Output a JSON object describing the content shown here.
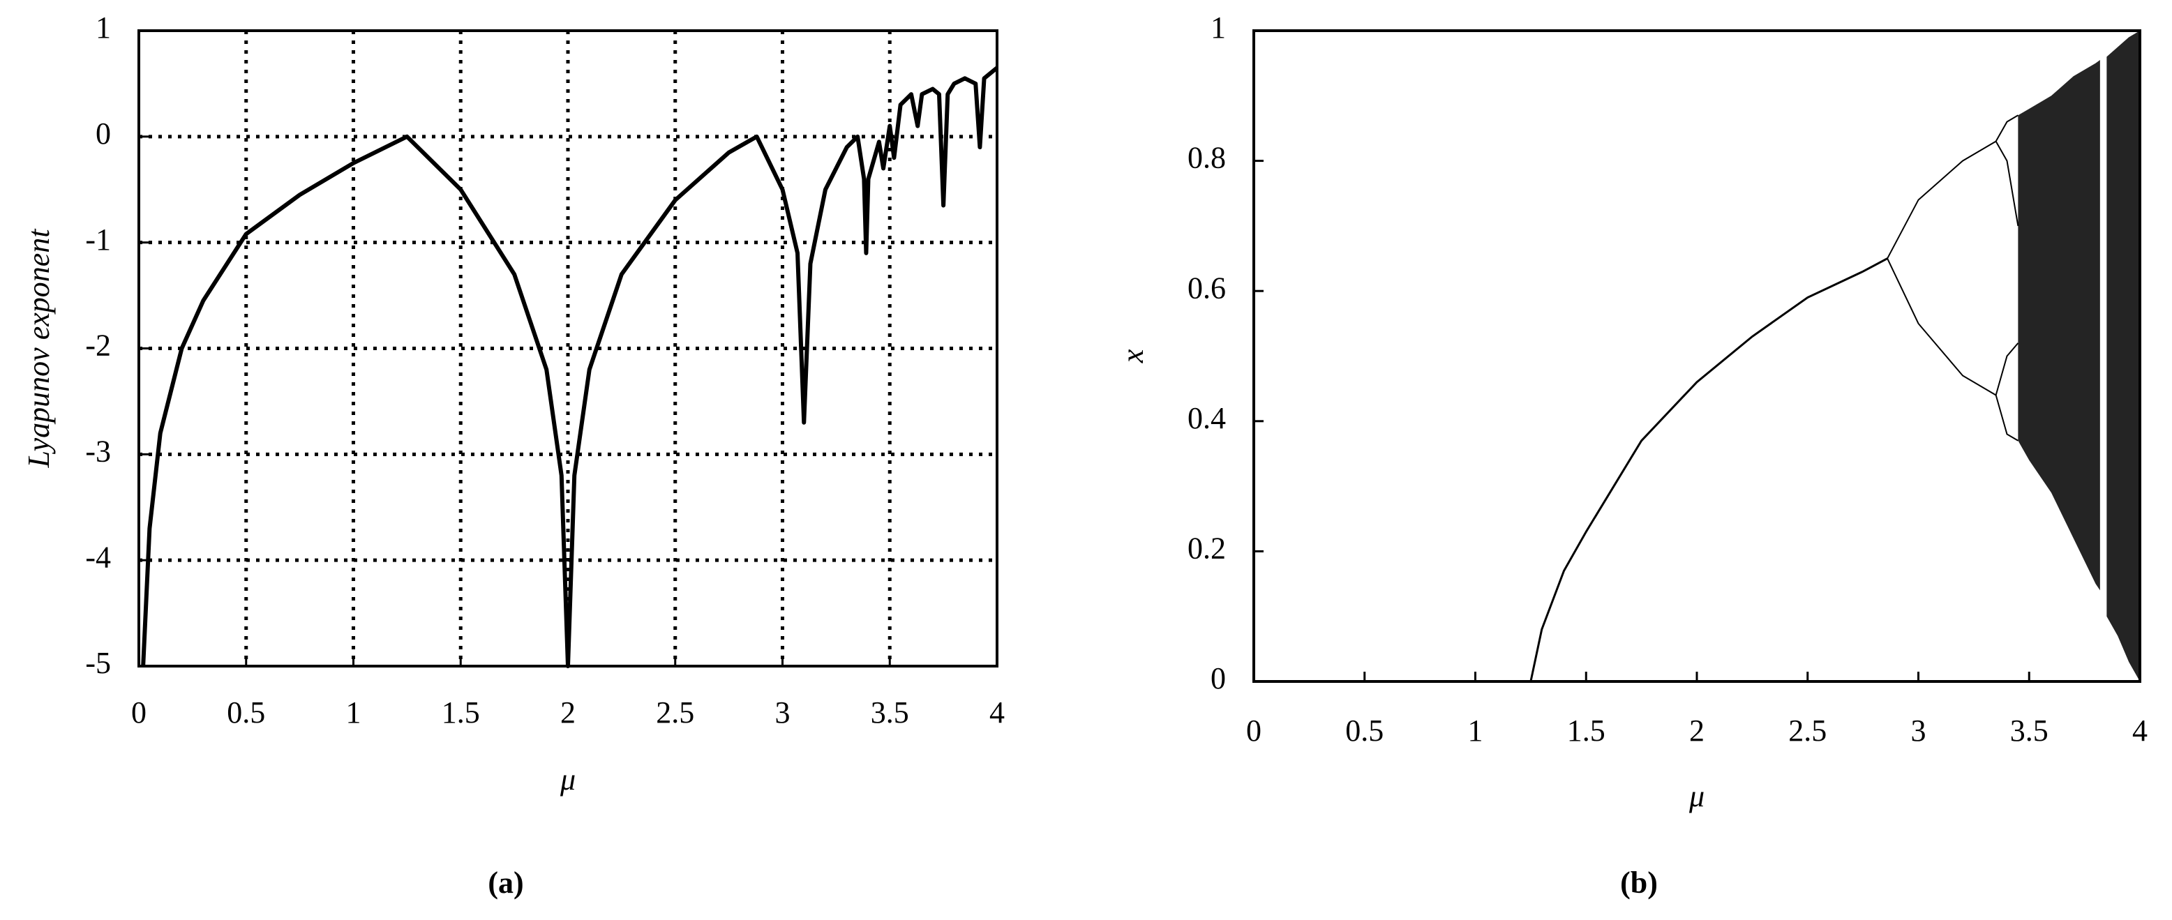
{
  "chart_data": [
    {
      "type": "line",
      "xlabel": "μ",
      "ylabel": "Lyapunov exponent",
      "caption": "(a)",
      "color": "#000000",
      "grid": true,
      "xlim": [
        0,
        4
      ],
      "ylim": [
        -5,
        1
      ],
      "xticks": [
        0,
        0.5,
        1,
        1.5,
        2,
        2.5,
        3,
        3.5,
        4
      ],
      "yticks": [
        -5,
        -4,
        -3,
        -2,
        -1,
        0,
        1
      ],
      "x": [
        0.02,
        0.05,
        0.1,
        0.2,
        0.3,
        0.5,
        0.75,
        1.0,
        1.25,
        1.5,
        1.75,
        1.9,
        1.97,
        2.0,
        2.03,
        2.1,
        2.25,
        2.5,
        2.75,
        2.88,
        3.0,
        3.07,
        3.1,
        3.13,
        3.2,
        3.3,
        3.35,
        3.38,
        3.39,
        3.4,
        3.45,
        3.47,
        3.5,
        3.52,
        3.55,
        3.6,
        3.63,
        3.65,
        3.7,
        3.73,
        3.75,
        3.77,
        3.8,
        3.85,
        3.9,
        3.92,
        3.94,
        4.0
      ],
      "values": [
        -5,
        -3.7,
        -2.8,
        -2.0,
        -1.55,
        -0.92,
        -0.55,
        -0.25,
        0,
        -0.5,
        -1.3,
        -2.2,
        -3.2,
        -5,
        -3.2,
        -2.2,
        -1.3,
        -0.6,
        -0.15,
        0,
        -0.5,
        -1.1,
        -2.7,
        -1.2,
        -0.5,
        -0.1,
        0,
        -0.4,
        -1.1,
        -0.4,
        -0.05,
        -0.3,
        0.1,
        -0.2,
        0.3,
        0.4,
        0.1,
        0.4,
        0.45,
        0.4,
        -0.65,
        0.4,
        0.5,
        0.55,
        0.5,
        -0.1,
        0.55,
        0.65
      ]
    },
    {
      "type": "bifurcation",
      "xlabel": "μ",
      "ylabel": "x",
      "caption": "(b)",
      "color": "#000000",
      "grid": false,
      "xlim": [
        0,
        4
      ],
      "ylim": [
        0,
        1
      ],
      "xticks": [
        0,
        0.5,
        1,
        1.5,
        2,
        2.5,
        3,
        3.5,
        4
      ],
      "yticks": [
        0,
        0.2,
        0.4,
        0.6,
        0.8,
        1
      ],
      "branches": [
        {
          "x": [
            0,
            1.25,
            1.3,
            1.4,
            1.5,
            1.75,
            2,
            2.25,
            2.5,
            2.75,
            2.86
          ],
          "values": [
            0,
            0,
            0.08,
            0.17,
            0.23,
            0.37,
            0.46,
            0.53,
            0.59,
            0.63,
            0.65
          ]
        },
        {
          "x": [
            2.86,
            3.0,
            3.2,
            3.35
          ],
          "values": [
            0.65,
            0.74,
            0.8,
            0.83
          ]
        },
        {
          "x": [
            2.86,
            3.0,
            3.2,
            3.35
          ],
          "values": [
            0.65,
            0.55,
            0.47,
            0.44
          ]
        },
        {
          "x": [
            3.35,
            3.4,
            3.45
          ],
          "values": [
            0.83,
            0.86,
            0.87
          ]
        },
        {
          "x": [
            3.35,
            3.4,
            3.45
          ],
          "values": [
            0.83,
            0.8,
            0.7
          ]
        },
        {
          "x": [
            3.35,
            3.4,
            3.45
          ],
          "values": [
            0.44,
            0.5,
            0.52
          ]
        },
        {
          "x": [
            3.35,
            3.4,
            3.45
          ],
          "values": [
            0.44,
            0.38,
            0.37
          ]
        }
      ],
      "bands": [
        {
          "x": [
            3.45,
            3.5,
            3.6,
            3.7,
            3.8,
            3.82
          ],
          "low": [
            0.37,
            0.34,
            0.29,
            0.22,
            0.15,
            0.14
          ],
          "high": [
            0.87,
            0.88,
            0.9,
            0.93,
            0.95,
            0.955
          ]
        },
        {
          "x": [
            3.85,
            3.9,
            3.95,
            4.0
          ],
          "low": [
            0.1,
            0.07,
            0.03,
            0
          ],
          "high": [
            0.96,
            0.975,
            0.99,
            1
          ]
        }
      ]
    }
  ]
}
